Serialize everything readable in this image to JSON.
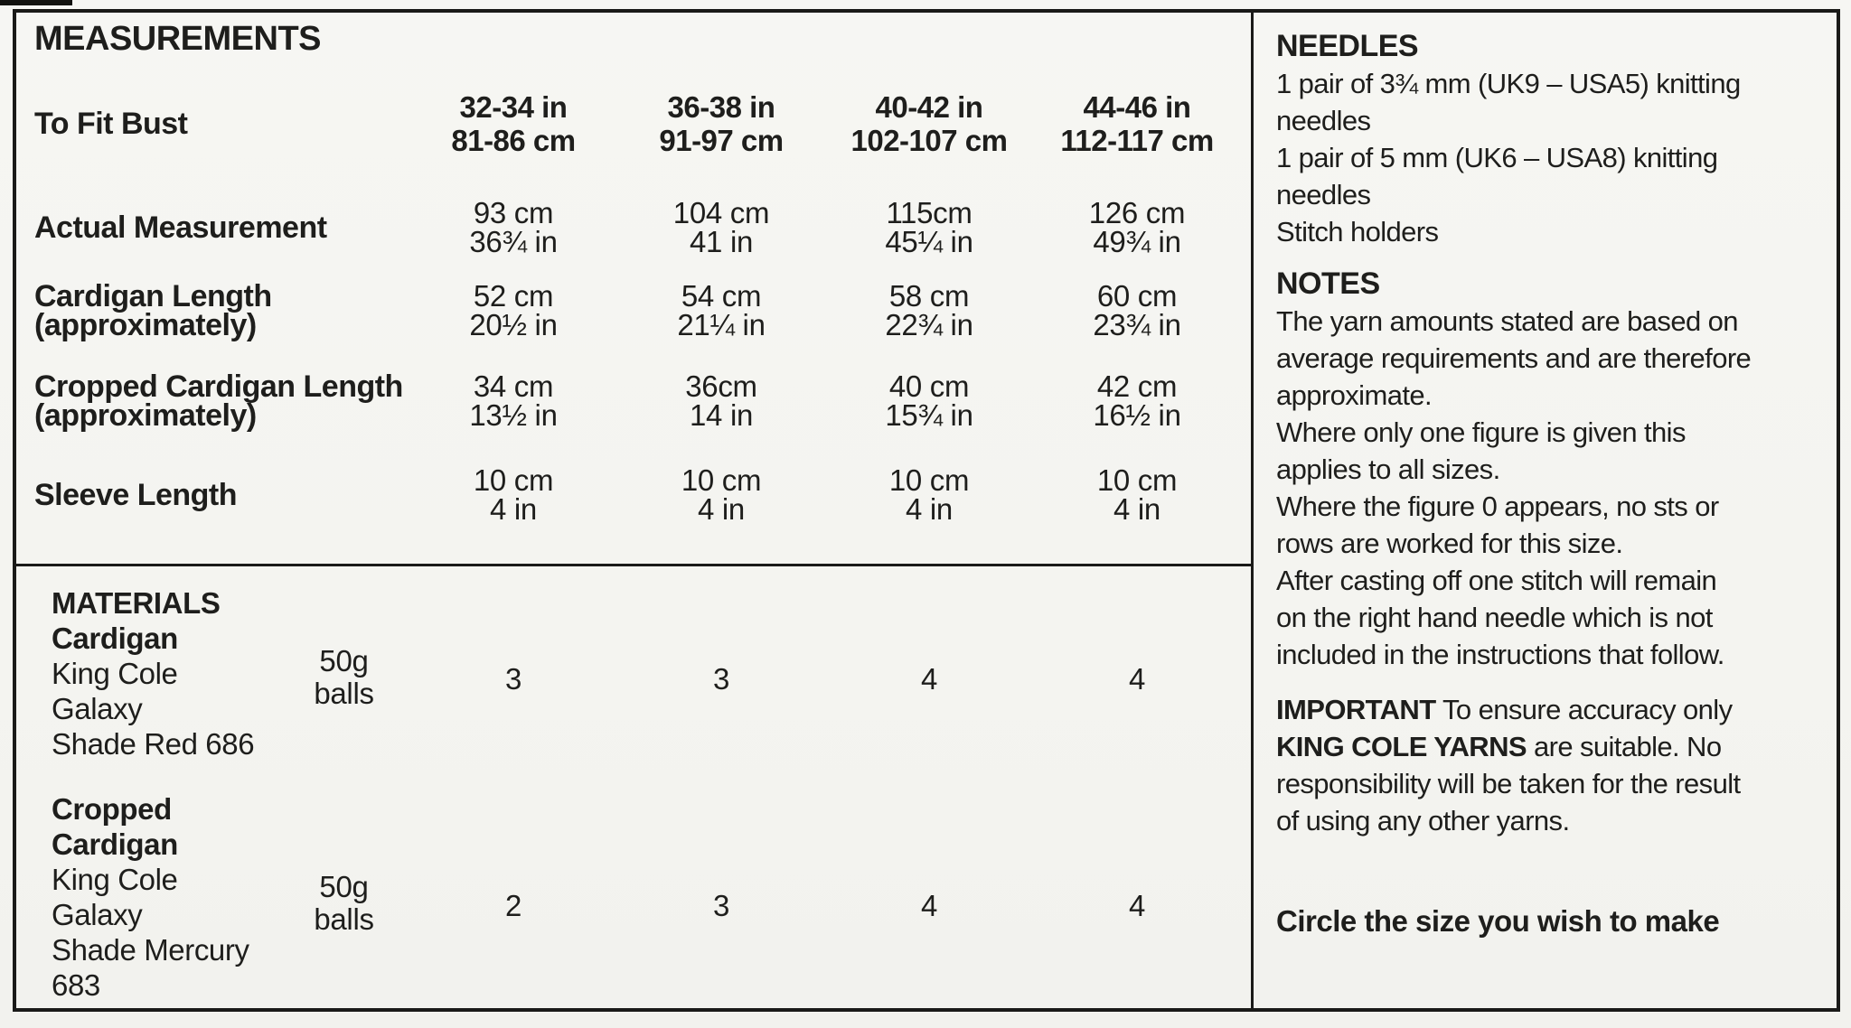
{
  "measurements": {
    "title": "MEASUREMENTS",
    "fit_label": "To Fit Bust",
    "sizes": [
      {
        "inches": "32-34 in",
        "cm": "81-86 cm"
      },
      {
        "inches": "36-38 in",
        "cm": "91-97 cm"
      },
      {
        "inches": "40-42 in",
        "cm": "102-107 cm"
      },
      {
        "inches": "44-46 in",
        "cm": "112-117 cm"
      }
    ],
    "rows": [
      {
        "label1": "Actual Measurement",
        "label2": "",
        "cells": [
          {
            "l1": "93 cm",
            "l2": "36¾ in"
          },
          {
            "l1": "104 cm",
            "l2": "41 in"
          },
          {
            "l1": "115cm",
            "l2": "45¼ in"
          },
          {
            "l1": "126 cm",
            "l2": "49¾ in"
          }
        ]
      },
      {
        "label1": "Cardigan Length",
        "label2": "(approximately)",
        "cells": [
          {
            "l1": "52 cm",
            "l2": "20½ in"
          },
          {
            "l1": "54 cm",
            "l2": "21¼ in"
          },
          {
            "l1": "58 cm",
            "l2": "22¾ in"
          },
          {
            "l1": "60 cm",
            "l2": "23¾ in"
          }
        ]
      },
      {
        "label1": "Cropped Cardigan Length",
        "label2": "(approximately)",
        "cells": [
          {
            "l1": "34 cm",
            "l2": "13½ in"
          },
          {
            "l1": "36cm",
            "l2": "14 in"
          },
          {
            "l1": "40 cm",
            "l2": "15¾ in"
          },
          {
            "l1": "42 cm",
            "l2": "16½ in"
          }
        ]
      },
      {
        "label1": "Sleeve Length",
        "label2": "",
        "cells": [
          {
            "l1": "10 cm",
            "l2": "4 in"
          },
          {
            "l1": "10 cm",
            "l2": "4 in"
          },
          {
            "l1": "10 cm",
            "l2": "4 in"
          },
          {
            "l1": "10 cm",
            "l2": "4 in"
          }
        ]
      }
    ]
  },
  "materials": {
    "title": "MATERIALS",
    "blocks": [
      {
        "name_lines": [
          "Cardigan"
        ],
        "detail_lines": [
          "King Cole",
          "Galaxy",
          "Shade Red 686"
        ],
        "unit_line1": "50g",
        "unit_line2": "balls",
        "quantities": [
          "3",
          "3",
          "4",
          "4"
        ]
      },
      {
        "name_lines": [
          "Cropped",
          "Cardigan"
        ],
        "detail_lines": [
          "King Cole",
          "Galaxy",
          "Shade Mercury",
          "683"
        ],
        "unit_line1": "50g",
        "unit_line2": "balls",
        "quantities": [
          "2",
          "3",
          "4",
          "4"
        ]
      }
    ]
  },
  "right_panel": {
    "needles": {
      "heading": "NEEDLES",
      "lines": [
        "1 pair of 3¾ mm (UK9 – USA5) knitting",
        "needles",
        "1 pair of 5 mm (UK6 – USA8) knitting",
        "needles",
        "Stitch holders"
      ]
    },
    "notes": {
      "heading": "NOTES",
      "lines": [
        "The yarn amounts stated are based on",
        "average requirements and are therefore",
        "approximate.",
        "Where only one figure is given this",
        "applies to all sizes.",
        "Where the figure 0 appears, no sts or",
        "rows are worked for this size.",
        "After casting off one stitch will remain",
        "on the right hand needle which is not",
        "included in the instructions that follow."
      ]
    },
    "important": {
      "heading": "IMPORTANT",
      "line1_rest": " To ensure accuracy only",
      "brand": "KING COLE YARNS",
      "line2_rest": " are suitable. No",
      "line3": "responsibility will be taken for the result",
      "line4": "of using any other yarns."
    },
    "circle_instruction": "Circle the size you wish to make"
  }
}
